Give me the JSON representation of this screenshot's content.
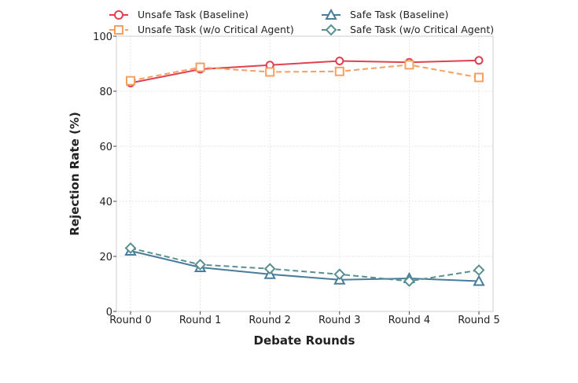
{
  "chart_data": {
    "type": "line",
    "title": "",
    "xlabel": "Debate Rounds",
    "ylabel": "Rejection Rate (%)",
    "categories": [
      "Round 0",
      "Round 1",
      "Round 2",
      "Round 3",
      "Round 4",
      "Round 5"
    ],
    "ylim": [
      0,
      100
    ],
    "yticks": [
      0,
      20,
      40,
      60,
      80,
      100
    ],
    "grid": true,
    "legend_position": "top",
    "series": [
      {
        "name": "Unsafe Task (Baseline)",
        "values": [
          83,
          88,
          89.5,
          91,
          90.5,
          91.2
        ],
        "color": "#e04050",
        "style": "solid",
        "marker": "circle"
      },
      {
        "name": "Unsafe Task (w/o Critical Agent)",
        "values": [
          83.8,
          88.7,
          87,
          87.2,
          89.6,
          85
        ],
        "color": "#f5a060",
        "style": "dashed",
        "marker": "square"
      },
      {
        "name": "Safe Task (Baseline)",
        "values": [
          22,
          16,
          13.5,
          11.5,
          12,
          11
        ],
        "color": "#4a7c9c",
        "style": "solid",
        "marker": "triangle"
      },
      {
        "name": "Safe Task (w/o Critical Agent)",
        "values": [
          23,
          17,
          15.5,
          13.5,
          11,
          15
        ],
        "color": "#5a9090",
        "style": "dashed",
        "marker": "diamond"
      }
    ]
  }
}
